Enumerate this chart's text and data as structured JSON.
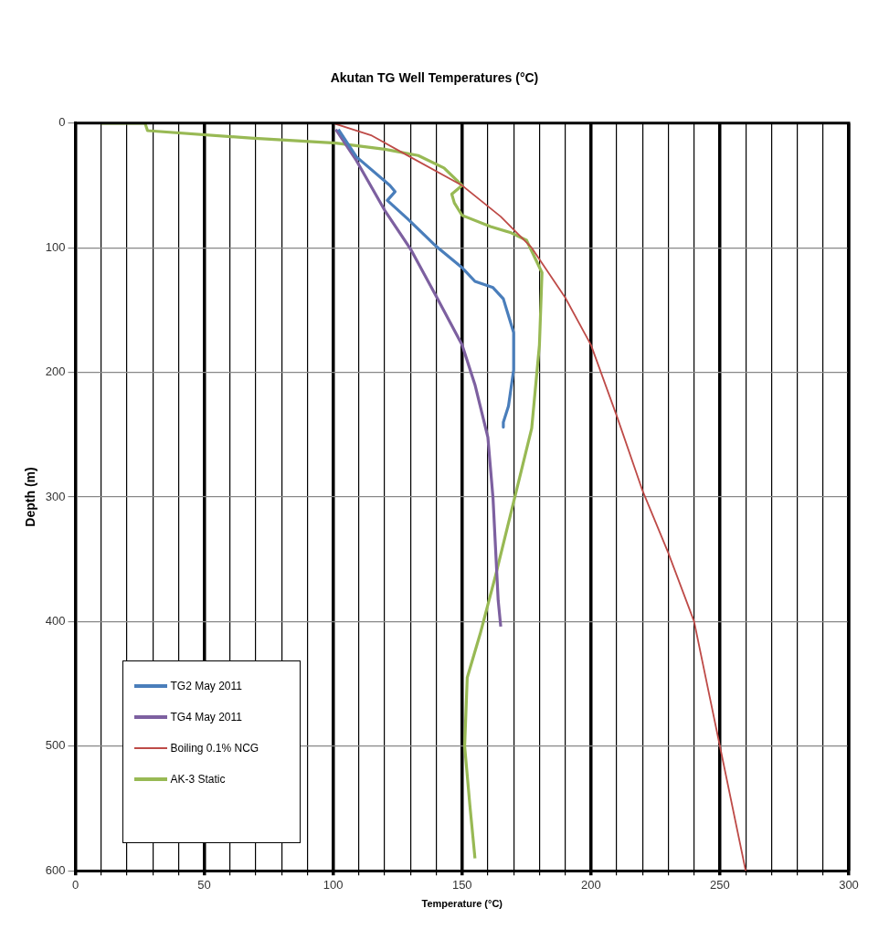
{
  "chart_data": {
    "type": "line",
    "title": "Akutan TG Well Temperatures (°C)",
    "xlabel": "Temperature (°C)",
    "ylabel": "Depth (m)",
    "xlim": [
      0,
      300
    ],
    "ylim": [
      600,
      0
    ],
    "xticks": [
      0,
      {
        "value": 10,
        "label": null
      },
      {
        "value": 20,
        "label": null
      },
      {
        "value": 30,
        "label": null
      },
      {
        "value": 40,
        "label": null
      },
      50,
      {
        "value": 60,
        "label": null
      },
      {
        "value": 70,
        "label": null
      },
      {
        "value": 80,
        "label": null
      },
      {
        "value": 90,
        "label": null
      },
      100,
      {
        "value": 110,
        "label": null
      },
      {
        "value": 120,
        "label": null
      },
      {
        "value": 130,
        "label": null
      },
      {
        "value": 140,
        "label": null
      },
      150,
      {
        "value": 160,
        "label": null
      },
      {
        "value": 170,
        "label": null
      },
      {
        "value": 180,
        "label": null
      },
      {
        "value": 190,
        "label": null
      },
      200,
      {
        "value": 210,
        "label": null
      },
      {
        "value": 220,
        "label": null
      },
      {
        "value": 230,
        "label": null
      },
      {
        "value": 240,
        "label": null
      },
      250,
      {
        "value": 260,
        "label": null
      },
      {
        "value": 270,
        "label": null
      },
      {
        "value": 280,
        "label": null
      },
      {
        "value": 290,
        "label": null
      },
      300
    ],
    "yticks": [
      0,
      100,
      200,
      300,
      400,
      500,
      600
    ],
    "grid": true,
    "legend": "bottom left",
    "marker": "none",
    "line_style": "solid",
    "series": [
      {
        "name": "TG2 May 2011",
        "color": "#4a7ebb",
        "x": [
          102,
          109,
          122,
          124,
          121,
          129,
          140,
          150,
          155,
          162,
          166,
          170,
          170,
          168,
          166,
          166
        ],
        "values": [
          5,
          27,
          50,
          55,
          62,
          77,
          99,
          116,
          127,
          132,
          141,
          168,
          198,
          227,
          240,
          244
        ]
      },
      {
        "name": "TG4 May 2011",
        "color": "#7d60a0",
        "x": [
          101,
          109,
          120,
          130,
          140,
          150,
          155,
          160,
          162,
          164,
          165
        ],
        "values": [
          5,
          30,
          70,
          101,
          139,
          178,
          210,
          252,
          301,
          383,
          404
        ]
      },
      {
        "name": "Boiling 0.1% NCG",
        "color": "#be4b48",
        "x": [
          100,
          115,
          128,
          150,
          165,
          177,
          190,
          200,
          210,
          220,
          230,
          240,
          250,
          255,
          260
        ],
        "values": [
          0,
          10,
          25,
          50,
          75,
          100,
          140,
          178,
          235,
          295,
          345,
          400,
          500,
          550,
          600
        ]
      },
      {
        "name": "AK-3 Static",
        "color": "#98b954",
        "x": [
          10,
          27,
          28,
          68,
          101,
          120,
          133,
          143,
          150,
          146,
          147,
          150,
          161,
          169,
          175,
          181,
          180,
          177,
          170,
          163,
          157,
          152,
          151,
          153,
          155
        ],
        "values": [
          0,
          0,
          6,
          12,
          16,
          21,
          26,
          36,
          50,
          57,
          64,
          74,
          83,
          88,
          94,
          120,
          178,
          245,
          304,
          363,
          410,
          445,
          500,
          547,
          590
        ]
      }
    ]
  }
}
